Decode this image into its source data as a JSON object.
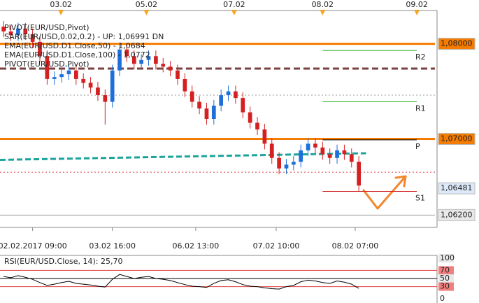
{
  "chart_data": {
    "type": "candlestick",
    "legend": [
      {
        "text": "PIVOT(EUR/USD,Pivot)",
        "color": "#000000"
      },
      {
        "text": "SAR(EUR/USD,0.02,0.2) - UP: 1,06991  DN",
        "color": "#e57373"
      },
      {
        "text": "EMA(EUR/USD.D1.Close,50) - 1,0684",
        "color": "#1ba39c"
      },
      {
        "text": "EMA(EUR/USD.D1.Close,100) - 1,0772",
        "color": "#000000"
      },
      {
        "text": "PIVOT(EUR/USD,Pivot)",
        "color": "#000000"
      }
    ],
    "up_color": "#1e6fd9",
    "down_color": "#d42020",
    "x": [
      0,
      1,
      2,
      3,
      4,
      5,
      6,
      7,
      8,
      9,
      10,
      11,
      12,
      13,
      14,
      15,
      16,
      17,
      18,
      19,
      20,
      21,
      22,
      23,
      24,
      25,
      26,
      27,
      28,
      29,
      30,
      31,
      32,
      33,
      34,
      35,
      36,
      37,
      38,
      39,
      40,
      41,
      42,
      43,
      44,
      45,
      46,
      47,
      48,
      49
    ],
    "open": [
      1.0818,
      1.0813,
      1.0809,
      1.0816,
      1.081,
      1.0802,
      1.0787,
      1.0763,
      1.0765,
      1.0768,
      1.0772,
      1.0763,
      1.0759,
      1.0754,
      1.0746,
      1.0739,
      1.0772,
      1.0794,
      1.0787,
      1.0779,
      1.0783,
      1.0787,
      1.0779,
      1.0776,
      1.0772,
      1.0763,
      1.075,
      1.0739,
      1.0732,
      1.0721,
      1.0735,
      1.0746,
      1.075,
      1.0743,
      1.0728,
      1.0717,
      1.071,
      1.0695,
      1.068,
      1.0669,
      1.0673,
      1.0676,
      1.0688,
      1.0695,
      1.0691,
      1.0684,
      1.068,
      1.0688,
      1.0684,
      1.0676
    ],
    "high": [
      1.0824,
      1.0819,
      1.0822,
      1.0822,
      1.0816,
      1.0808,
      1.0793,
      1.0771,
      1.0774,
      1.0778,
      1.0778,
      1.0769,
      1.0765,
      1.076,
      1.0752,
      1.0778,
      1.08,
      1.08,
      1.0793,
      1.0789,
      1.0793,
      1.0793,
      1.0785,
      1.0782,
      1.0778,
      1.0769,
      1.0756,
      1.0745,
      1.0738,
      1.0741,
      1.0752,
      1.0756,
      1.0756,
      1.0749,
      1.0734,
      1.0723,
      1.0716,
      1.0701,
      1.0686,
      1.0679,
      1.0682,
      1.0694,
      1.0701,
      1.0701,
      1.0697,
      1.069,
      1.0694,
      1.0694,
      1.069,
      1.0682
    ],
    "low": [
      1.0807,
      1.0803,
      1.0803,
      1.0804,
      1.0796,
      1.0781,
      1.0757,
      1.0757,
      1.0759,
      1.0762,
      1.0757,
      1.0753,
      1.0748,
      1.074,
      1.0715,
      1.0733,
      1.0766,
      1.0781,
      1.0773,
      1.0773,
      1.0777,
      1.0773,
      1.077,
      1.0766,
      1.0757,
      1.0744,
      1.0733,
      1.0726,
      1.0715,
      1.0715,
      1.0729,
      1.074,
      1.0737,
      1.0722,
      1.0711,
      1.0704,
      1.0689,
      1.0674,
      1.0663,
      1.0663,
      1.0667,
      1.067,
      1.0682,
      1.0685,
      1.0678,
      1.0674,
      1.0674,
      1.0678,
      1.067,
      1.0645
    ],
    "close": [
      1.0813,
      1.0809,
      1.0816,
      1.081,
      1.0802,
      1.0787,
      1.0763,
      1.0765,
      1.0768,
      1.0772,
      1.0763,
      1.0759,
      1.0754,
      1.0746,
      1.0739,
      1.0772,
      1.0794,
      1.0787,
      1.0779,
      1.0783,
      1.0787,
      1.0779,
      1.0776,
      1.0772,
      1.0763,
      1.075,
      1.0739,
      1.0732,
      1.0721,
      1.0735,
      1.0746,
      1.075,
      1.0743,
      1.0728,
      1.0717,
      1.071,
      1.0695,
      1.068,
      1.0669,
      1.0673,
      1.0676,
      1.0688,
      1.0695,
      1.0691,
      1.0684,
      1.068,
      1.0688,
      1.0684,
      1.0676,
      1.0651
    ],
    "xlim": [
      -0.5,
      59.5
    ],
    "ylim": [
      1.0607,
      1.0835
    ],
    "yticks": [
      {
        "value": 1.08,
        "label": "1,08000"
      },
      {
        "value": 1.07,
        "label": "1,07000"
      },
      {
        "value": 1.06481,
        "label": "1,06481"
      },
      {
        "value": 1.062,
        "label": "1,06200"
      }
    ],
    "ytick_colors": [
      "#f57c00",
      "#f57c00",
      "#dde8f8",
      "#e8e8e8"
    ],
    "xticks": [
      {
        "value": 4,
        "label": "02.02.2017 09:00"
      },
      {
        "value": 15,
        "label": "03.02 16:00"
      },
      {
        "value": 26.5,
        "label": "06.02 13:00"
      },
      {
        "value": 37.6,
        "label": "07.02 10:00"
      },
      {
        "value": 48.5,
        "label": "08.02 07:00"
      }
    ],
    "top_xticks": [
      {
        "value": 7.9,
        "label": "03.02"
      },
      {
        "value": 19.7,
        "label": "05.02"
      },
      {
        "value": 31.8,
        "label": "07.02"
      },
      {
        "value": 44,
        "label": "08.02"
      },
      {
        "value": 57,
        "label": "09.02"
      }
    ],
    "hlines": [
      {
        "value": 1.08,
        "color": "#f57c00",
        "width": 3
      },
      {
        "value": 1.07,
        "color": "#f57c00",
        "width": 3
      },
      {
        "value": 1.062,
        "color": "#999999",
        "width": 1
      },
      {
        "value": 1.0774,
        "color": "#7b3f3f",
        "width": 3,
        "dash": "9 5"
      },
      {
        "value": 1.0665,
        "color": "#e04040",
        "width": 1,
        "dash": "2 3"
      },
      {
        "value": 1.0746,
        "color": "#999999",
        "width": 1,
        "dash": "2 3"
      }
    ],
    "ema": {
      "color": "#1ba39c",
      "x": [
        -0.5,
        50
      ],
      "values": [
        1.0678,
        1.0685
      ]
    },
    "levels": [
      {
        "label": "R2",
        "value": 1.0793,
        "color": "#22aa22"
      },
      {
        "label": "R1",
        "value": 1.0739,
        "color": "#22aa22"
      },
      {
        "label": "P",
        "value": 1.0699,
        "color": "#000000"
      },
      {
        "label": "S1",
        "value": 1.06449,
        "color": "#d42020"
      }
    ],
    "rsi": {
      "title": "RSI(EUR/USD.Close, 14): 25,70",
      "values": [
        55,
        52,
        57,
        53,
        48,
        40,
        33,
        36,
        40,
        43,
        38,
        36,
        34,
        31,
        29,
        48,
        60,
        55,
        50,
        53,
        55,
        50,
        48,
        45,
        40,
        35,
        31,
        30,
        28,
        38,
        45,
        47,
        42,
        35,
        31,
        30,
        27,
        25,
        24,
        30,
        33,
        42,
        46,
        44,
        40,
        38,
        44,
        41,
        36,
        25.7
      ],
      "ylim": [
        0,
        100
      ],
      "yticks": [
        100,
        70,
        50,
        30,
        0
      ],
      "ytick_colors": [
        "#e8e8e8",
        "#f08080",
        "#e8e8e8",
        "#f08080",
        "#ffffff"
      ]
    }
  }
}
